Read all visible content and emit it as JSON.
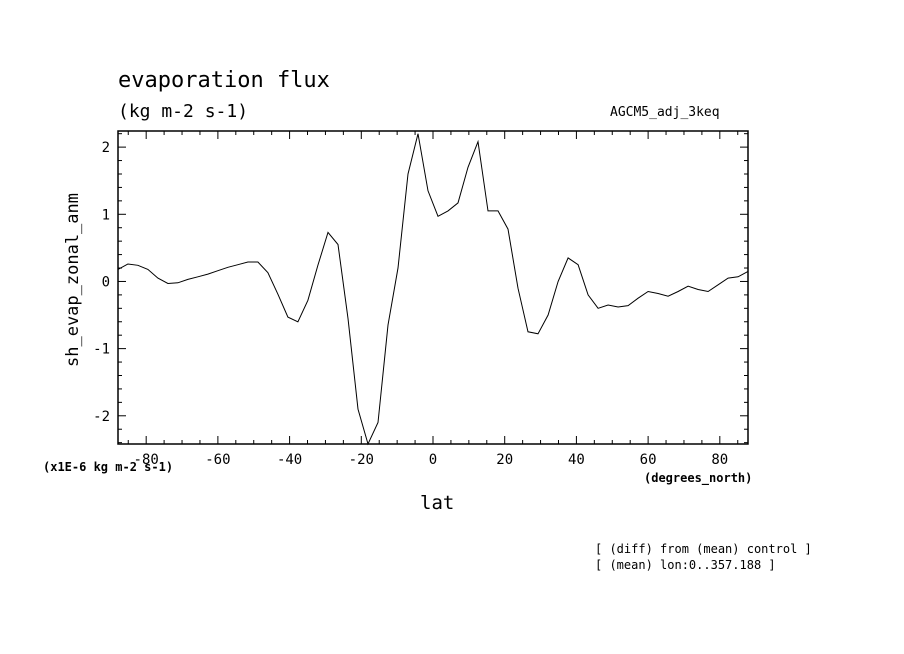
{
  "chart_data": {
    "type": "line",
    "title": "evaporation flux",
    "subtitle": "(kg m-2 s-1)",
    "experiment_label": "AGCM5_adj_3keq",
    "ylabel": "sh_evap_zonal_anm",
    "xlabel": "lat",
    "x_units": "(degrees_north)",
    "y_scale_note": "(x1E-6 kg m-2 s-1)",
    "xlim": [
      -87.86,
      87.86
    ],
    "ylim": [
      -2.42,
      2.24
    ],
    "xticks": [
      -80,
      -60,
      -40,
      -20,
      0,
      20,
      40,
      60,
      80
    ],
    "yticks": [
      -2,
      -1,
      0,
      1,
      2
    ],
    "grid": false,
    "x": [
      -87.86,
      -85.1,
      -82.31,
      -79.53,
      -76.74,
      -73.95,
      -71.16,
      -68.37,
      -65.58,
      -62.79,
      -60.0,
      -57.21,
      -54.42,
      -51.63,
      -48.84,
      -46.05,
      -43.26,
      -40.47,
      -37.67,
      -34.88,
      -32.09,
      -29.3,
      -26.51,
      -23.72,
      -20.93,
      -18.14,
      -15.35,
      -12.56,
      -9.77,
      -6.98,
      -4.19,
      -1.4,
      1.4,
      4.19,
      6.98,
      9.77,
      12.56,
      15.35,
      18.14,
      20.93,
      23.72,
      26.51,
      29.3,
      32.09,
      34.88,
      37.67,
      40.47,
      43.26,
      46.05,
      48.84,
      51.63,
      54.42,
      57.21,
      60.0,
      62.79,
      65.58,
      68.37,
      71.16,
      73.95,
      76.74,
      79.53,
      82.31,
      85.1,
      87.86
    ],
    "series": [
      {
        "values": [
          0.18,
          0.26,
          0.24,
          0.18,
          0.05,
          -0.03,
          -0.02,
          0.03,
          0.07,
          0.11,
          0.16,
          0.21,
          0.25,
          0.29,
          0.29,
          0.13,
          -0.19,
          -0.53,
          -0.6,
          -0.28,
          0.24,
          0.73,
          0.55,
          -0.55,
          -1.9,
          -2.42,
          -2.1,
          -0.65,
          0.2,
          1.6,
          2.2,
          1.35,
          0.97,
          1.05,
          1.17,
          1.7,
          2.08,
          1.05,
          1.05,
          0.78,
          -0.1,
          -0.75,
          -0.78,
          -0.5,
          0.0,
          0.35,
          0.25,
          -0.2,
          -0.4,
          -0.35,
          -0.38,
          -0.36,
          -0.25,
          -0.15,
          -0.18,
          -0.22,
          -0.15,
          -0.07,
          -0.12,
          -0.15,
          -0.05,
          0.05,
          0.07,
          0.15
        ]
      }
    ]
  },
  "footnotes": [
    "[ (diff) from (mean) control ]",
    "[ (mean) lon:0..357.188 ]"
  ]
}
